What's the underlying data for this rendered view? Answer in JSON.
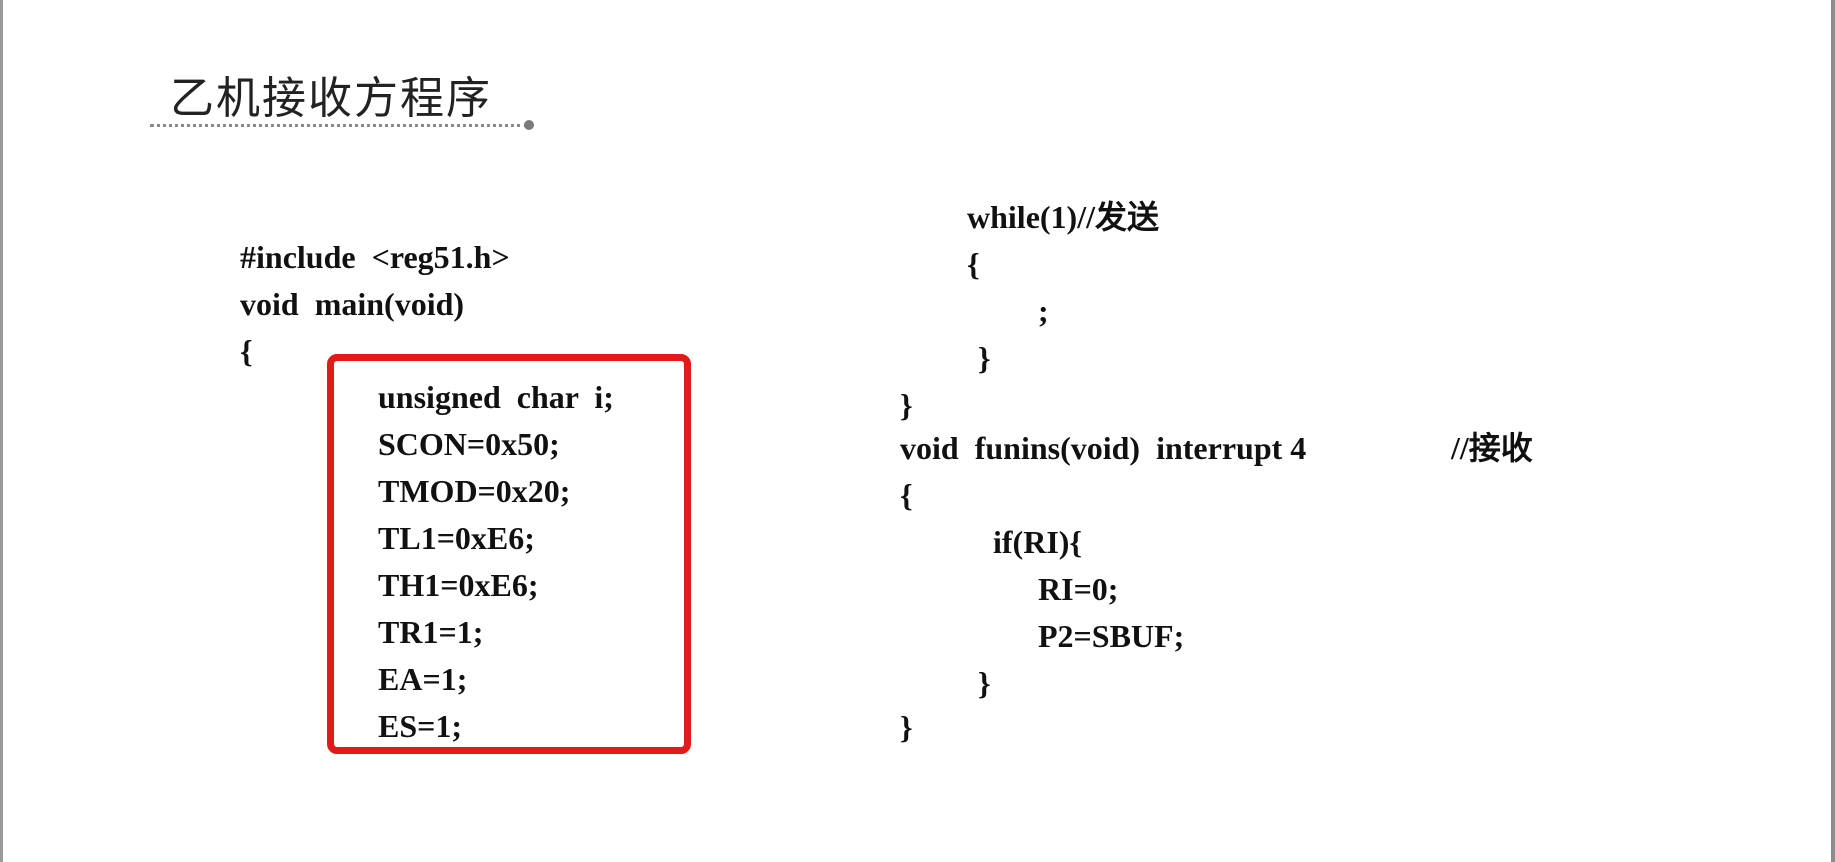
{
  "slide": {
    "title": "乙机接收方程序",
    "left_code": [
      "#include  <reg51.h>",
      "void  main(void)",
      "{",
      "unsigned  char  i;",
      "SCON=0x50;",
      "TMOD=0x20;",
      "TL1=0xE6;",
      "TH1=0xE6;",
      "TR1=1;",
      "EA=1;",
      "ES=1;"
    ],
    "right_code": [
      "while(1)//发送",
      "{",
      ";",
      "}",
      "}",
      "void  funins(void)  interrupt 4",
      "//接收",
      "{",
      "if(RI){",
      "RI=0;",
      "P2=SBUF;",
      "}",
      "}"
    ]
  },
  "colors": {
    "highlight_border": "#e21a1a",
    "text": "#111111",
    "title_underline": "#8a8a8a"
  }
}
